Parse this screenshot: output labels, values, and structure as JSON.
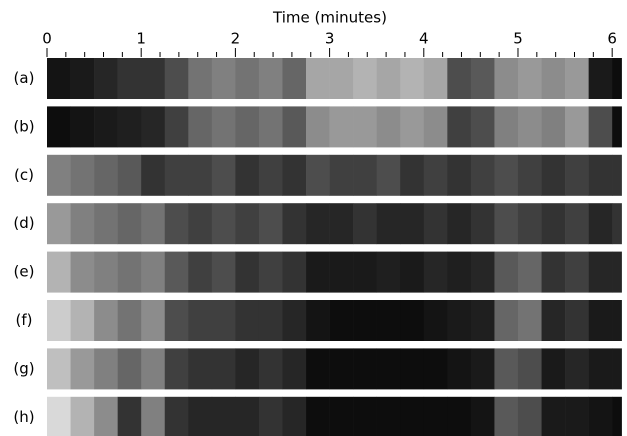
{
  "chart_data": {
    "type": "heatmap",
    "xlabel": "Time (minutes)",
    "xlim": [
      0,
      6.1
    ],
    "xticks": [
      0,
      1,
      2,
      3,
      4,
      5,
      6
    ],
    "xticks_minor": [
      0.2,
      0.4,
      0.6,
      0.8,
      1.2,
      1.4,
      1.6,
      1.8,
      2.2,
      2.4,
      2.6,
      2.8,
      3.2,
      3.4,
      3.6,
      3.8,
      4.2,
      4.4,
      4.6,
      4.8,
      5.2,
      5.4,
      5.6,
      5.8
    ],
    "bins": [
      0,
      0.25,
      0.5,
      0.75,
      1,
      1.25,
      1.5,
      1.75,
      2,
      2.25,
      2.5,
      2.75,
      3,
      3.25,
      3.5,
      3.75,
      4,
      4.25,
      4.5,
      4.75,
      5,
      5.25,
      5.5,
      5.75,
      6,
      6.1
    ],
    "rows": [
      {
        "label": "(a)",
        "values": [
          0.08,
          0.1,
          0.15,
          0.2,
          0.2,
          0.3,
          0.45,
          0.5,
          0.45,
          0.5,
          0.4,
          0.65,
          0.65,
          0.7,
          0.65,
          0.7,
          0.65,
          0.3,
          0.35,
          0.55,
          0.6,
          0.55,
          0.6,
          0.1,
          0.05
        ]
      },
      {
        "label": "(b)",
        "values": [
          0.05,
          0.08,
          0.1,
          0.12,
          0.15,
          0.25,
          0.4,
          0.45,
          0.4,
          0.45,
          0.35,
          0.55,
          0.6,
          0.6,
          0.55,
          0.6,
          0.55,
          0.25,
          0.3,
          0.5,
          0.55,
          0.5,
          0.6,
          0.3,
          0.05
        ]
      },
      {
        "label": "(c)",
        "values": [
          0.5,
          0.45,
          0.4,
          0.35,
          0.2,
          0.25,
          0.25,
          0.3,
          0.2,
          0.25,
          0.2,
          0.3,
          0.25,
          0.25,
          0.3,
          0.2,
          0.25,
          0.2,
          0.25,
          0.3,
          0.25,
          0.2,
          0.25,
          0.2,
          0.2
        ]
      },
      {
        "label": "(d)",
        "values": [
          0.6,
          0.5,
          0.45,
          0.4,
          0.45,
          0.3,
          0.25,
          0.3,
          0.25,
          0.3,
          0.2,
          0.15,
          0.15,
          0.2,
          0.15,
          0.15,
          0.2,
          0.15,
          0.2,
          0.3,
          0.25,
          0.2,
          0.25,
          0.15,
          0.2
        ]
      },
      {
        "label": "(e)",
        "values": [
          0.7,
          0.55,
          0.5,
          0.45,
          0.5,
          0.35,
          0.25,
          0.3,
          0.2,
          0.25,
          0.2,
          0.1,
          0.1,
          0.1,
          0.12,
          0.1,
          0.15,
          0.12,
          0.15,
          0.35,
          0.4,
          0.2,
          0.25,
          0.15,
          0.15
        ]
      },
      {
        "label": "(f)",
        "values": [
          0.8,
          0.7,
          0.55,
          0.45,
          0.55,
          0.3,
          0.25,
          0.25,
          0.2,
          0.2,
          0.15,
          0.08,
          0.05,
          0.05,
          0.05,
          0.05,
          0.08,
          0.1,
          0.12,
          0.4,
          0.45,
          0.15,
          0.2,
          0.1,
          0.1
        ]
      },
      {
        "label": "(g)",
        "values": [
          0.75,
          0.6,
          0.5,
          0.4,
          0.5,
          0.25,
          0.2,
          0.2,
          0.15,
          0.2,
          0.15,
          0.05,
          0.05,
          0.05,
          0.05,
          0.05,
          0.05,
          0.08,
          0.1,
          0.35,
          0.3,
          0.1,
          0.15,
          0.1,
          0.1
        ]
      },
      {
        "label": "(h)",
        "values": [
          0.85,
          0.7,
          0.55,
          0.2,
          0.5,
          0.2,
          0.15,
          0.15,
          0.15,
          0.2,
          0.15,
          0.05,
          0.05,
          0.05,
          0.05,
          0.05,
          0.05,
          0.05,
          0.08,
          0.35,
          0.3,
          0.1,
          0.1,
          0.08,
          0.05
        ]
      }
    ]
  }
}
